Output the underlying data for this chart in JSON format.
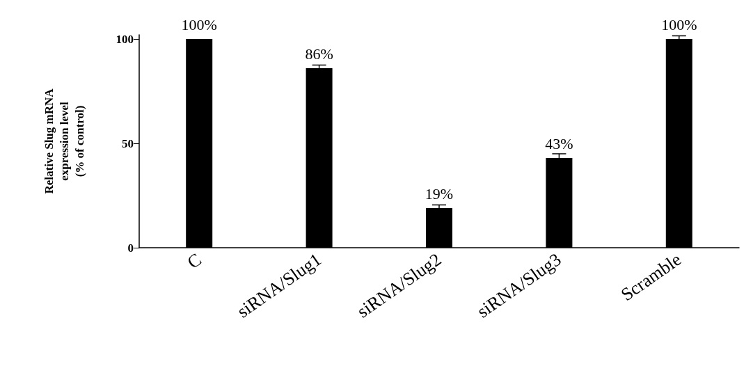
{
  "chart_data": {
    "type": "bar",
    "ylabel": "Relative Slug mRNA\nexpression level\n(% of control)",
    "categories": [
      "C",
      "siRNA/Slug1",
      "siRNA/Slug2",
      "siRNA/Slug3",
      "Scramble"
    ],
    "values": [
      100,
      86,
      19,
      43,
      100
    ],
    "errors": [
      null,
      1.5,
      1.5,
      2,
      1.5
    ],
    "value_labels": [
      "100%",
      "86%",
      "19%",
      "43%",
      "100%"
    ],
    "color": "#000000",
    "ylim": [
      0,
      102
    ],
    "yticks": [
      0,
      50,
      100
    ]
  }
}
